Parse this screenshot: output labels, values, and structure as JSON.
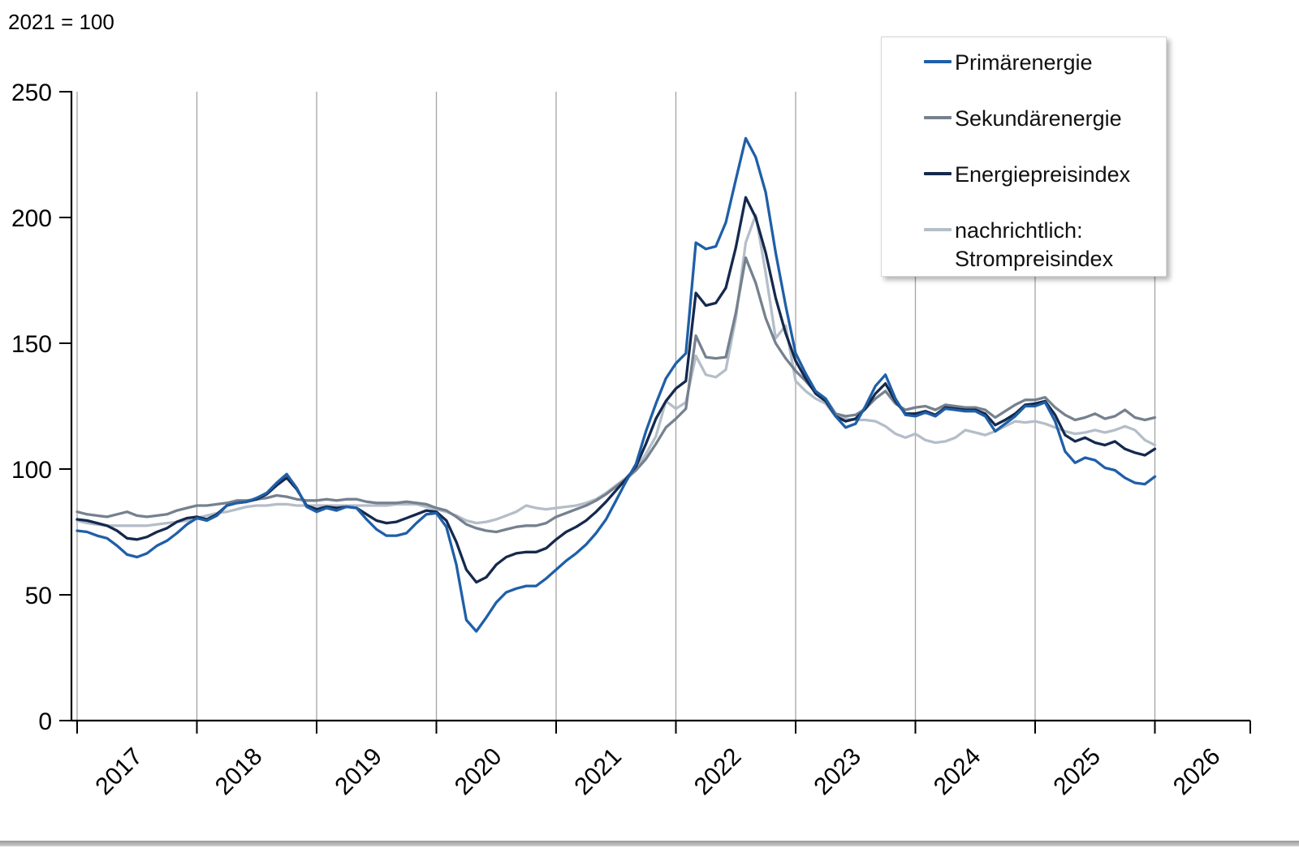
{
  "header": {
    "title_note": "2021 = 100"
  },
  "colors": {
    "gridline": "#a3a3a3",
    "axis": "#000000",
    "text": "#000000",
    "legend_border": "#d6d6d6",
    "footer_bar": "#b3b3b3"
  },
  "legend": {
    "items": [
      {
        "label": "Primärenergie"
      },
      {
        "label": "Sekundärenergie"
      },
      {
        "label": "Energiepreisindex"
      },
      {
        "label": "nachrichtlich:\nStrompreisindex"
      }
    ]
  },
  "chart_data": {
    "type": "line",
    "title": "",
    "unit_note": "2021 = 100",
    "xlabel": "",
    "ylabel": "",
    "x_axis": {
      "tick_labels": [
        "2017",
        "2018",
        "2019",
        "2020",
        "2021",
        "2022",
        "2023",
        "2024",
        "2025",
        "2026"
      ],
      "start": "2017-01",
      "end": "2026-01",
      "frequency": "monthly"
    },
    "y_axis": {
      "ticks": [
        0,
        50,
        100,
        150,
        200,
        250
      ],
      "range": [
        0,
        250
      ]
    },
    "grid": "vertical-year-lines",
    "legend_position": "top-right",
    "series": [
      {
        "name": "Primärenergie",
        "color": "#1f5fa8",
        "values": [
          75.5,
          75,
          73.5,
          72.5,
          69.5,
          66,
          65,
          66.5,
          69.5,
          71.5,
          74.5,
          78,
          80.5,
          79.5,
          81.5,
          85.5,
          86.5,
          87,
          88.5,
          90.5,
          94.5,
          98,
          92.5,
          85,
          83,
          84.5,
          83.5,
          85,
          84.5,
          80,
          76,
          73.5,
          73.5,
          74.5,
          78.5,
          82,
          82.5,
          77,
          62,
          40,
          35.5,
          41,
          47,
          51,
          52.5,
          53.5,
          53.5,
          56.5,
          60,
          63.5,
          66.5,
          70,
          74.5,
          80,
          87.5,
          95,
          102,
          115,
          126,
          136,
          142,
          146,
          190,
          187.5,
          188.5,
          198,
          215,
          231.5,
          224,
          210,
          186,
          165,
          146,
          138,
          131,
          128,
          121,
          116.5,
          118,
          125,
          133,
          137.5,
          128,
          121.5,
          121,
          122.5,
          121,
          124,
          123.5,
          123,
          123,
          121,
          115,
          118,
          121,
          125,
          125,
          126.5,
          119,
          107,
          102.5,
          104.5,
          103.5,
          100.5,
          99.5,
          96.5,
          94.5,
          94,
          97
        ]
      },
      {
        "name": "Sekundärenergie",
        "color": "#76818f",
        "values": [
          83,
          82,
          81.5,
          81,
          82,
          83,
          81.5,
          81,
          81.5,
          82,
          83.5,
          84.5,
          85.5,
          85.5,
          86,
          86.5,
          87.5,
          87.5,
          88,
          88.5,
          89.5,
          89,
          88,
          87.5,
          87.5,
          88,
          87.5,
          88,
          88,
          87,
          86.5,
          86.5,
          86.5,
          87,
          86.5,
          86,
          84.5,
          83.5,
          81,
          78,
          76.5,
          75.5,
          75,
          76,
          77,
          77.5,
          77.5,
          78.5,
          81,
          82.5,
          84,
          85.5,
          87.5,
          90,
          93,
          96,
          99.5,
          104,
          110,
          116.5,
          120,
          124,
          153,
          144.5,
          144,
          144.5,
          162,
          184,
          174,
          160,
          150,
          144,
          139,
          135,
          130.5,
          128,
          122,
          121,
          121.5,
          124,
          128,
          131,
          126,
          123.5,
          124.5,
          125,
          123.5,
          125.5,
          125,
          124.5,
          124.5,
          123.5,
          120.5,
          123,
          125.5,
          127.5,
          127.5,
          128.5,
          124.5,
          121.5,
          119.5,
          120.5,
          122,
          120,
          121,
          123.5,
          120.5,
          119.5,
          120.5
        ]
      },
      {
        "name": "Energiepreisindex",
        "color": "#15294d",
        "values": [
          80,
          79.5,
          78.5,
          77.5,
          75.5,
          72.5,
          72,
          73,
          75,
          76.5,
          79,
          80.5,
          81,
          80,
          82,
          85.5,
          86.5,
          87,
          88,
          90,
          93.5,
          96.5,
          92,
          85.5,
          84,
          85,
          84.5,
          85,
          84.5,
          82,
          79.5,
          78.5,
          79,
          80.5,
          82,
          83.5,
          83,
          79.5,
          71,
          60,
          55,
          57,
          62,
          65,
          66.5,
          67,
          67,
          68.5,
          72,
          75,
          77,
          79.5,
          83,
          87,
          91.5,
          96,
          101,
          110,
          120,
          127,
          132,
          135,
          170,
          165,
          166,
          172,
          188,
          208,
          200,
          186,
          168,
          154,
          143,
          136,
          130,
          127,
          121,
          119,
          120,
          124,
          130,
          134,
          127,
          122,
          122,
          123,
          121.5,
          124.5,
          124,
          123.5,
          123.5,
          122,
          117.5,
          119.5,
          122,
          125.5,
          126,
          127,
          121.5,
          113.5,
          111,
          112.5,
          110.5,
          109.5,
          111,
          108,
          106.5,
          105.5,
          108
        ]
      },
      {
        "name": "nachrichtlich: Strompreisindex",
        "color": "#b4bec9",
        "values": [
          79.5,
          78.5,
          78,
          77.5,
          77.5,
          77.5,
          77.5,
          77.5,
          78,
          78.5,
          79,
          79.5,
          80.5,
          81.5,
          82.5,
          83,
          84,
          85,
          85.5,
          85.5,
          86,
          86,
          85.5,
          85.5,
          85.5,
          85.5,
          85.5,
          85.5,
          85.5,
          85.5,
          85.5,
          85.5,
          86,
          86,
          86,
          85,
          84,
          83,
          81.5,
          79.5,
          78.5,
          79,
          80,
          81.5,
          83,
          85.5,
          84.5,
          84,
          84.5,
          85,
          85.5,
          86.5,
          88,
          90.5,
          93.5,
          96.5,
          100,
          106,
          113,
          127,
          124,
          126.5,
          145,
          137.5,
          136.5,
          139.5,
          160,
          190,
          201,
          178,
          152,
          157,
          135,
          131,
          128,
          126,
          121,
          120,
          119.5,
          119.5,
          119,
          117,
          114,
          112.5,
          114,
          111.5,
          110.5,
          111,
          112.5,
          115.5,
          114.5,
          113.5,
          115,
          117,
          119,
          118.5,
          119,
          118,
          116.5,
          115,
          114,
          114.5,
          115.5,
          114.5,
          115.5,
          117,
          115.5,
          111.5,
          109.5
        ]
      }
    ]
  }
}
